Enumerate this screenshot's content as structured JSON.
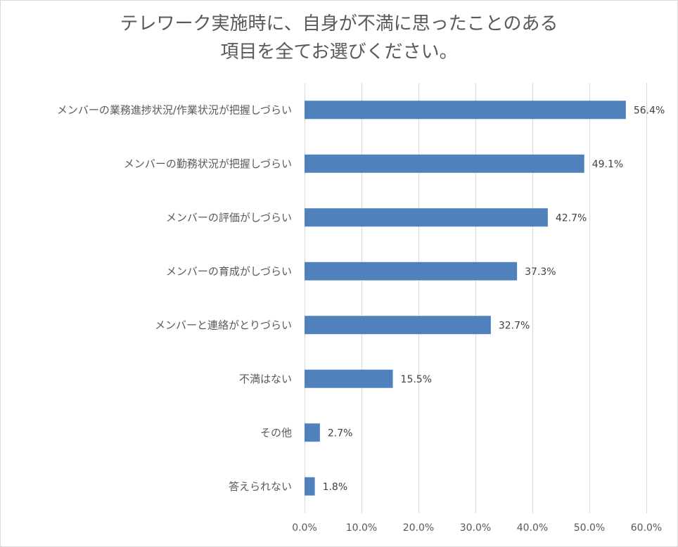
{
  "chart_data": {
    "type": "bar",
    "orientation": "horizontal",
    "title_lines": [
      "テレワーク実施時に、自身が不満に思ったことのある",
      "項目を全てお選びください。"
    ],
    "categories": [
      "メンバーの業務進捗状況/作業状況が把握しづらい",
      "メンバーの勤務状況が把握しづらい",
      "メンバーの評価がしづらい",
      "メンバーの育成がしづらい",
      "メンバーと連絡がとりづらい",
      "不満はない",
      "その他",
      "答えられない"
    ],
    "values": [
      56.4,
      49.1,
      42.7,
      37.3,
      32.7,
      15.5,
      2.7,
      1.8
    ],
    "value_labels": [
      "56.4%",
      "49.1%",
      "42.7%",
      "37.3%",
      "32.7%",
      "15.5%",
      "2.7%",
      "1.8%"
    ],
    "xticks": [
      "0.0%",
      "10.0%",
      "20.0%",
      "30.0%",
      "40.0%",
      "50.0%",
      "60.0%"
    ],
    "xlim": [
      0,
      60
    ],
    "grid": true,
    "legend": "none",
    "bar_color": "#4f81bd",
    "grid_color": "#d9d9d9",
    "text_color": "#595959"
  }
}
